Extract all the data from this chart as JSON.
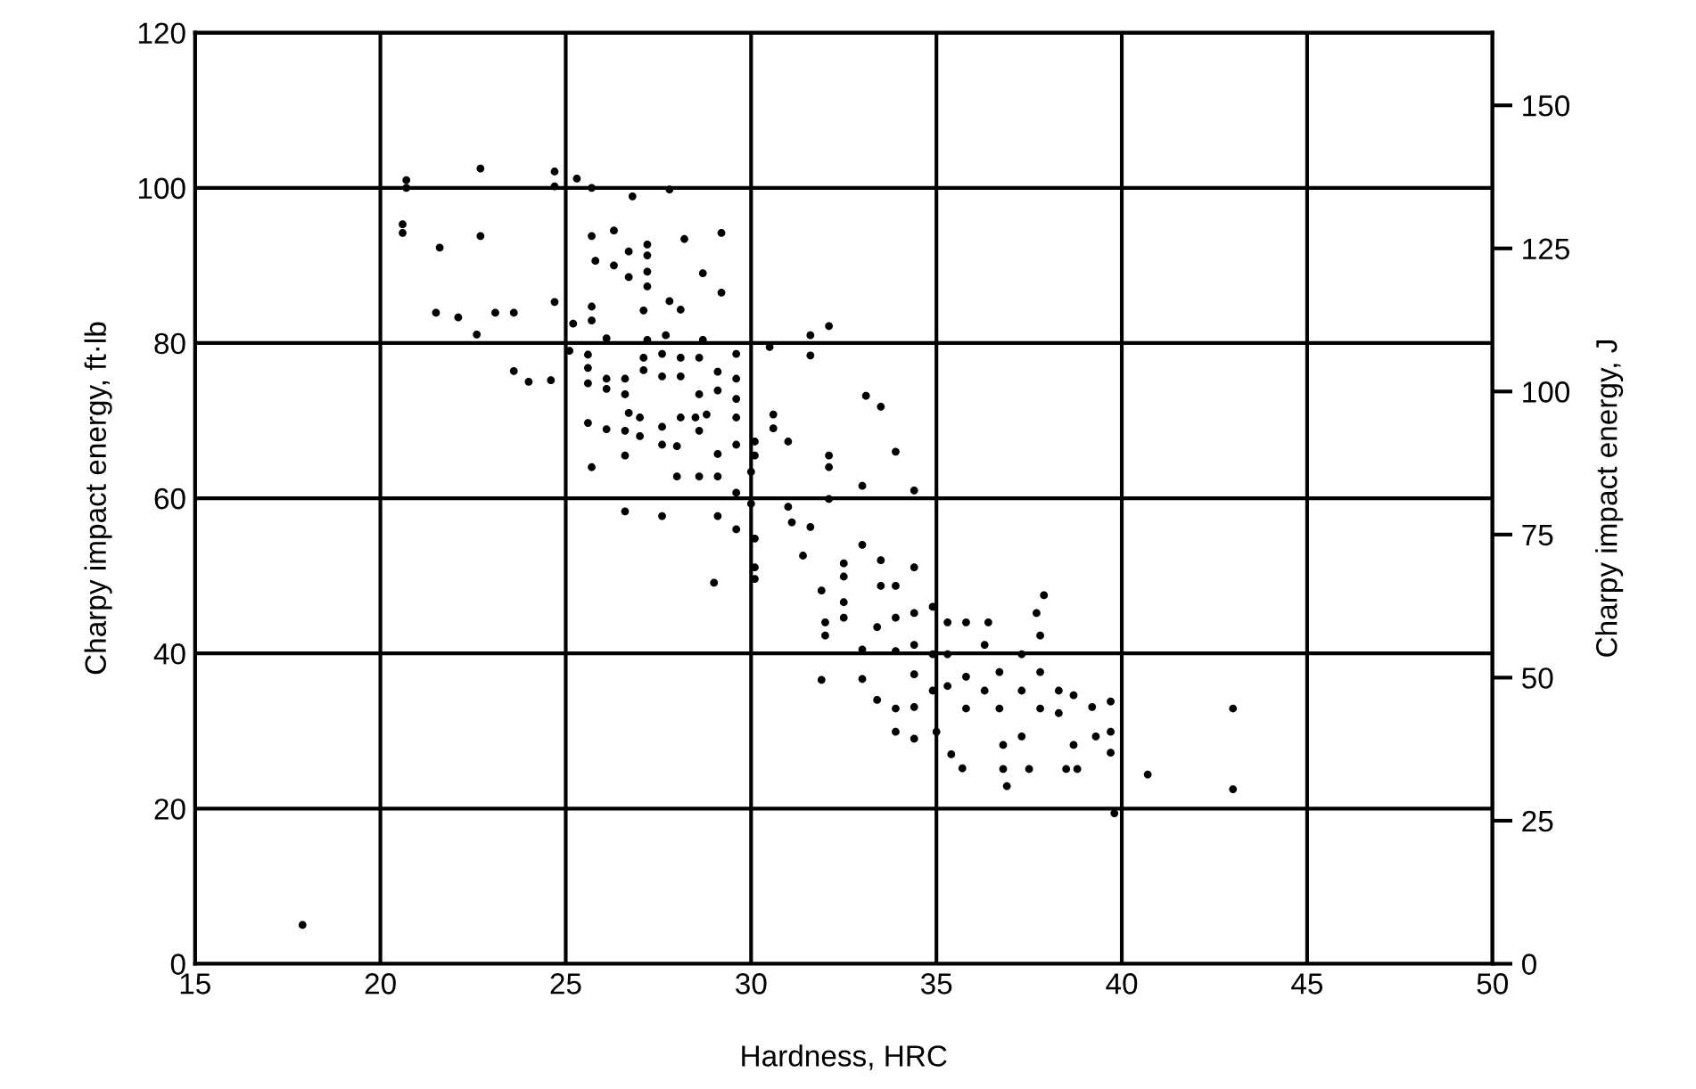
{
  "chart_data": {
    "type": "scatter",
    "xlabel": "Hardness, HRC",
    "ylabel": "Charpy impact energy, ft·lb",
    "y2label": "Charpy impact energy, J",
    "xlim": [
      15,
      50
    ],
    "xticks": [
      15,
      20,
      25,
      30,
      35,
      40,
      45,
      50
    ],
    "ylim": [
      0,
      120
    ],
    "yticks": [
      0,
      20,
      40,
      60,
      80,
      100,
      120
    ],
    "y2lim": [
      0,
      162.7
    ],
    "y2ticks": [
      0,
      25,
      50,
      75,
      100,
      125,
      150
    ],
    "grid": true,
    "marker": "circle",
    "legend": false,
    "series": [
      {
        "color": "#000000",
        "x": [
          17.9,
          20.7,
          20.7,
          20.6,
          20.6,
          21.6,
          21.5,
          22.1,
          22.6,
          22.7,
          22.7,
          23.1,
          23.6,
          23.6,
          24.0,
          24.6,
          24.7,
          24.7,
          24.7,
          25.3,
          25.7,
          25.2,
          25.1,
          25.6,
          25.7,
          25.8,
          25.7,
          25.7,
          26.1,
          26.3,
          26.3,
          25.6,
          25.6,
          25.6,
          25.7,
          26.1,
          26.1,
          26.1,
          26.6,
          26.6,
          26.7,
          26.7,
          26.8,
          26.6,
          26.6,
          26.7,
          26.6,
          27.0,
          27.0,
          27.2,
          27.2,
          27.2,
          27.2,
          27.1,
          27.2,
          27.1,
          27.1,
          27.6,
          27.6,
          27.6,
          27.6,
          27.6,
          27.8,
          27.8,
          27.7,
          28.1,
          28.1,
          28.1,
          28.1,
          28.0,
          28.0,
          28.2,
          28.6,
          28.6,
          28.5,
          28.6,
          28.6,
          28.7,
          28.7,
          28.8,
          29.1,
          29.1,
          29.1,
          29.1,
          29.0,
          29.2,
          29.2,
          29.1,
          29.6,
          29.6,
          29.6,
          29.6,
          29.6,
          29.6,
          29.6,
          30.1,
          30.1,
          30.0,
          30.0,
          30.1,
          30.1,
          30.1,
          30.5,
          30.6,
          30.6,
          31.0,
          31.0,
          31.1,
          31.6,
          31.6,
          32.1,
          31.6,
          31.4,
          32.1,
          32.1,
          32.1,
          31.9,
          32.0,
          32.0,
          31.9,
          32.5,
          32.5,
          32.5,
          32.5,
          33.0,
          33.0,
          33.1,
          33.5,
          33.0,
          33.0,
          33.5,
          33.5,
          33.4,
          33.4,
          33.9,
          33.9,
          33.9,
          33.9,
          33.9,
          33.9,
          34.4,
          34.4,
          34.4,
          34.4,
          34.4,
          34.4,
          34.4,
          34.9,
          34.9,
          34.9,
          35.0,
          35.3,
          35.3,
          35.3,
          35.4,
          35.7,
          35.8,
          35.8,
          35.8,
          36.3,
          36.3,
          36.4,
          36.7,
          36.7,
          36.8,
          36.8,
          36.9,
          37.3,
          37.3,
          37.3,
          37.5,
          37.8,
          37.8,
          37.7,
          37.9,
          37.8,
          38.3,
          38.3,
          38.5,
          38.7,
          38.7,
          38.8,
          39.2,
          39.3,
          39.7,
          39.7,
          39.7,
          39.8,
          40.7,
          43.0,
          43.0
        ],
        "values": [
          5,
          101,
          100,
          95.3,
          94.2,
          92.3,
          83.9,
          83.3,
          81.1,
          102.5,
          93.8,
          83.9,
          83.9,
          76.4,
          75.0,
          75.2,
          85.3,
          102.1,
          100.2,
          101.2,
          100,
          82.5,
          79,
          78.5,
          93.8,
          90.6,
          84.7,
          82.9,
          80.6,
          94.5,
          90,
          76.8,
          74.8,
          69.7,
          64,
          75.4,
          74.1,
          68.9,
          65.5,
          58.3,
          91.8,
          88.5,
          98.9,
          75.4,
          73.4,
          71,
          68.7,
          70.4,
          68,
          92.7,
          91.3,
          89.2,
          87.3,
          84.2,
          80.4,
          78.1,
          76.5,
          78.6,
          75.7,
          69.2,
          66.9,
          57.7,
          99.8,
          85.4,
          81,
          84.3,
          78.1,
          75.7,
          70.4,
          66.7,
          62.8,
          93.4,
          78.1,
          73.4,
          70.4,
          68.7,
          62.8,
          89,
          80.4,
          70.8,
          76.3,
          73.9,
          65.7,
          62.8,
          49.1,
          94.2,
          86.5,
          57.7,
          75.4,
          72.8,
          70.4,
          66.9,
          60.7,
          56,
          78.6,
          67.3,
          65.5,
          63.4,
          59.3,
          54.8,
          51.1,
          49.6,
          79.5,
          70.8,
          69,
          67.3,
          58.9,
          56.9,
          81,
          78.4,
          82.2,
          56.3,
          52.6,
          65.5,
          64,
          59.9,
          48.1,
          44,
          42.3,
          36.6,
          51.6,
          49.9,
          46.6,
          44.6,
          54,
          61.6,
          73.2,
          71.8,
          40.5,
          36.7,
          52,
          48.7,
          43.4,
          34,
          66,
          48.7,
          44.6,
          40.3,
          32.9,
          29.9,
          61,
          51.1,
          45.2,
          41.1,
          37.3,
          33.1,
          29,
          46,
          39.9,
          35.2,
          29.9,
          44,
          39.9,
          35.8,
          27,
          25.2,
          44,
          37,
          32.9,
          41.1,
          35.2,
          44,
          37.6,
          32.9,
          28.2,
          25.1,
          22.9,
          35.2,
          39.9,
          29.3,
          25.1,
          37.6,
          32.9,
          45.2,
          47.5,
          42.3,
          35.2,
          32.3,
          25.1,
          34.6,
          28.2,
          25.1,
          33.1,
          29.3,
          33.8,
          29.9,
          27.2,
          19.4,
          24.4,
          32.9,
          22.5
        ]
      }
    ]
  }
}
